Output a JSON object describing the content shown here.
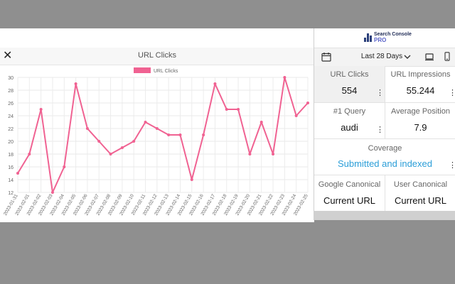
{
  "chart_panel": {
    "title": "URL Clicks",
    "close_glyph": "✕"
  },
  "chart_data": {
    "type": "line",
    "title": "",
    "xlabel": "",
    "ylabel": "",
    "ylim": [
      12,
      30
    ],
    "yticks": [
      12,
      14,
      16,
      18,
      20,
      22,
      24,
      26,
      28,
      30
    ],
    "legend_position": "top-center",
    "grid": true,
    "categories": [
      "2023-01-31",
      "2023-02-01",
      "2023-02-02",
      "2023-02-03",
      "2023-02-04",
      "2023-02-05",
      "2023-02-06",
      "2023-02-07",
      "2023-02-08",
      "2023-02-09",
      "2023-02-10",
      "2023-02-11",
      "2023-02-12",
      "2023-02-13",
      "2023-02-14",
      "2023-02-15",
      "2023-02-16",
      "2023-02-17",
      "2023-02-18",
      "2023-02-19",
      "2023-02-20",
      "2023-02-21",
      "2023-02-22",
      "2023-02-23",
      "2023-02-24",
      "2023-02-25"
    ],
    "series": [
      {
        "name": "URL Clicks",
        "color": "#f06292",
        "values": [
          15,
          18,
          25,
          12,
          16,
          29,
          22,
          20,
          18,
          19,
          20,
          23,
          22,
          21,
          21,
          14,
          21,
          29,
          25,
          25,
          18,
          23,
          18,
          30,
          24,
          26
        ]
      }
    ]
  },
  "sidebar": {
    "logo": {
      "line1": "Search Console",
      "line2": "PRO"
    },
    "date_range": "Last 28 Days",
    "metrics": [
      {
        "label": "URL Clicks",
        "value": "554"
      },
      {
        "label": "URL Impressions",
        "value": "55.244"
      },
      {
        "label": "#1 Query",
        "value": "audi"
      },
      {
        "label": "Average Position",
        "value": "7.9"
      }
    ],
    "coverage": {
      "label": "Coverage",
      "value": "Submitted and indexed"
    },
    "canonical": [
      {
        "label": "Google Canonical",
        "value": "Current URL"
      },
      {
        "label": "User Canonical",
        "value": "Current URL"
      }
    ],
    "more_glyph": "⋮"
  }
}
